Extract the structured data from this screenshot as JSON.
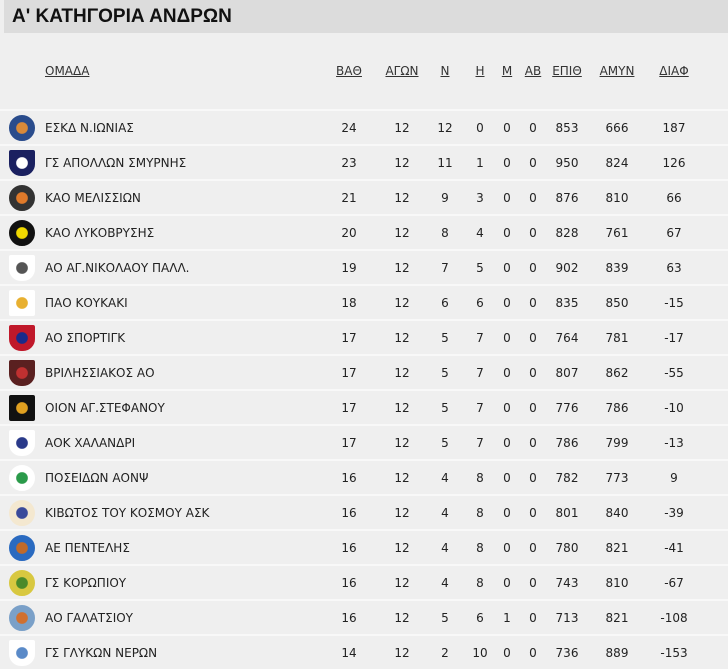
{
  "title": "Α' ΚΑΤΗΓΟΡΙΑ ΑΝΔΡΩΝ",
  "columns": [
    "ΟΜΑΔΑ",
    "ΒΑΘ",
    "ΑΓΩΝ",
    "Ν",
    "Η",
    "Μ",
    "ΑΒ",
    "ΕΠΙΘ",
    "ΑΜΥΝ",
    "ΔΙΑΦ"
  ],
  "rows": [
    {
      "team": "ΕΣΚΔ Ν.ΙΩΝΙΑΣ",
      "logo": {
        "shape": "circle",
        "c1": "#2a4c8c",
        "c2": "#d98a3a"
      },
      "vals": [
        "24",
        "12",
        "12",
        "0",
        "0",
        "0",
        "853",
        "666",
        "187"
      ]
    },
    {
      "team": "ΓΣ ΑΠΟΛΛΩΝ ΣΜΥΡΝΗΣ",
      "logo": {
        "shape": "shield",
        "c1": "#1a2060",
        "c2": "#ffffff"
      },
      "vals": [
        "23",
        "12",
        "11",
        "1",
        "0",
        "0",
        "950",
        "824",
        "126"
      ]
    },
    {
      "team": "ΚΑΟ ΜΕΛΙΣΣΙΩΝ",
      "logo": {
        "shape": "circle",
        "c1": "#333333",
        "c2": "#e07a2a"
      },
      "vals": [
        "21",
        "12",
        "9",
        "3",
        "0",
        "0",
        "876",
        "810",
        "66"
      ]
    },
    {
      "team": "ΚΑΟ ΛΥΚΟΒΡΥΣΗΣ",
      "logo": {
        "shape": "circle",
        "c1": "#111111",
        "c2": "#f0d800"
      },
      "vals": [
        "20",
        "12",
        "8",
        "4",
        "0",
        "0",
        "828",
        "761",
        "67"
      ]
    },
    {
      "team": "ΑΟ ΑΓ.ΝΙΚΟΛΑΟΥ ΠΑΛΛ.",
      "logo": {
        "shape": "shield",
        "c1": "#ffffff",
        "c2": "#555555"
      },
      "vals": [
        "19",
        "12",
        "7",
        "5",
        "0",
        "0",
        "902",
        "839",
        "63"
      ]
    },
    {
      "team": "ΠΑΟ ΚΟΥΚΑΚΙ",
      "logo": {
        "shape": "square",
        "c1": "#ffffff",
        "c2": "#e8b030"
      },
      "vals": [
        "18",
        "12",
        "6",
        "6",
        "0",
        "0",
        "835",
        "850",
        "-15"
      ]
    },
    {
      "team": "ΑΟ ΣΠΟΡΤΙΓΚ",
      "logo": {
        "shape": "shield",
        "c1": "#c0182a",
        "c2": "#1a2a8a"
      },
      "vals": [
        "17",
        "12",
        "5",
        "7",
        "0",
        "0",
        "764",
        "781",
        "-17"
      ]
    },
    {
      "team": "ΒΡΙΛΗΣΣΙΑΚΟΣ ΑΟ",
      "logo": {
        "shape": "shield",
        "c1": "#5a2020",
        "c2": "#c03030"
      },
      "vals": [
        "17",
        "12",
        "5",
        "7",
        "0",
        "0",
        "807",
        "862",
        "-55"
      ]
    },
    {
      "team": "ΟΙΟΝ ΑΓ.ΣΤΕΦΑΝΟΥ",
      "logo": {
        "shape": "square",
        "c1": "#111111",
        "c2": "#e0a020"
      },
      "vals": [
        "17",
        "12",
        "5",
        "7",
        "0",
        "0",
        "776",
        "786",
        "-10"
      ]
    },
    {
      "team": "ΑΟΚ ΧΑΛΑΝΔΡΙ",
      "logo": {
        "shape": "shield",
        "c1": "#ffffff",
        "c2": "#2a3a8a"
      },
      "vals": [
        "17",
        "12",
        "5",
        "7",
        "0",
        "0",
        "786",
        "799",
        "-13"
      ]
    },
    {
      "team": "ΠΟΣΕΙΔΩΝ ΑΟΝΨ",
      "logo": {
        "shape": "circle",
        "c1": "#ffffff",
        "c2": "#2a9a4a"
      },
      "vals": [
        "16",
        "12",
        "4",
        "8",
        "0",
        "0",
        "782",
        "773",
        "9"
      ]
    },
    {
      "team": "ΚΙΒΩΤΟΣ ΤΟΥ ΚΟΣΜΟΥ ΑΣΚ",
      "logo": {
        "shape": "circle",
        "c1": "#f4e8d0",
        "c2": "#3a4a9a"
      },
      "vals": [
        "16",
        "12",
        "4",
        "8",
        "0",
        "0",
        "801",
        "840",
        "-39"
      ]
    },
    {
      "team": "ΑΕ ΠΕΝΤΕΛΗΣ",
      "logo": {
        "shape": "circle",
        "c1": "#2a6ac0",
        "c2": "#c06a2a"
      },
      "vals": [
        "16",
        "12",
        "4",
        "8",
        "0",
        "0",
        "780",
        "821",
        "-41"
      ]
    },
    {
      "team": "ΓΣ ΚΟΡΩΠΙΟΥ",
      "logo": {
        "shape": "circle",
        "c1": "#d8c840",
        "c2": "#4a8a2a"
      },
      "vals": [
        "16",
        "12",
        "4",
        "8",
        "0",
        "0",
        "743",
        "810",
        "-67"
      ]
    },
    {
      "team": "ΑΟ ΓΑΛΑΤΣΙΟΥ",
      "logo": {
        "shape": "circle",
        "c1": "#7aa0c8",
        "c2": "#d07030"
      },
      "vals": [
        "16",
        "12",
        "5",
        "6",
        "1",
        "0",
        "713",
        "821",
        "-108"
      ]
    },
    {
      "team": "ΓΣ ΓΛΥΚΩΝ ΝΕΡΩΝ",
      "logo": {
        "shape": "shield",
        "c1": "#ffffff",
        "c2": "#5a8ac8"
      },
      "vals": [
        "14",
        "12",
        "2",
        "10",
        "0",
        "0",
        "736",
        "889",
        "-153"
      ]
    }
  ]
}
